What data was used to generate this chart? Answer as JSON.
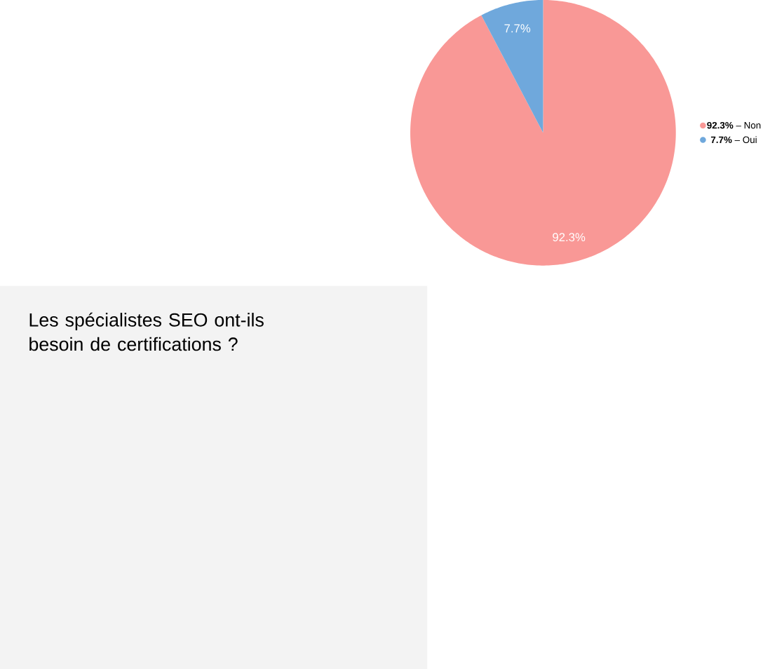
{
  "chart_data": {
    "type": "pie",
    "title": "Les spécialistes SEO ont-ils besoin de certifications ?",
    "categories": [
      "**92.3%** – Non",
      "**7.7%** – Oui"
    ],
    "values": [
      92.3,
      7.7
    ],
    "value_labels": [
      "92.3%",
      "7.7%"
    ],
    "colors": [
      "#f99896",
      "#6fa8dc"
    ],
    "legend": "right"
  }
}
